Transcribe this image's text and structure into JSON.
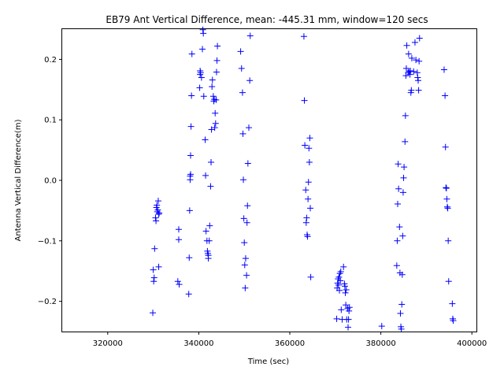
{
  "chart_data": {
    "type": "scatter",
    "title": "EB79 Ant Vertical Difference, mean: -445.31 mm, window=120 secs",
    "xlabel": "Time (sec)",
    "ylabel": "Antenna Vertical Difference(m)",
    "xlim": [
      310000,
      401000
    ],
    "ylim": [
      -0.25,
      0.25
    ],
    "x_ticks": [
      320000,
      340000,
      360000,
      380000,
      400000
    ],
    "y_ticks": [
      -0.2,
      -0.1,
      0.0,
      0.1,
      0.2
    ],
    "x_tick_labels": [
      "320000",
      "340000",
      "360000",
      "380000",
      "400000"
    ],
    "y_tick_labels": [
      "−0.2",
      "−0.1",
      "0.0",
      "0.1",
      "0.2"
    ],
    "marker": "+",
    "color": "#0000ff",
    "grid": false,
    "series": [
      {
        "points": [
          [
            329900,
            -0.219
          ],
          [
            330000,
            -0.148
          ],
          [
            330100,
            -0.167
          ],
          [
            330200,
            -0.161
          ],
          [
            330300,
            -0.113
          ],
          [
            330500,
            -0.062
          ],
          [
            330600,
            -0.067
          ],
          [
            330700,
            -0.045
          ],
          [
            330800,
            -0.041
          ],
          [
            330900,
            -0.052
          ],
          [
            331000,
            -0.049
          ],
          [
            331100,
            -0.034
          ],
          [
            331200,
            -0.056
          ],
          [
            331300,
            -0.054
          ],
          [
            331200,
            -0.143
          ],
          [
            335400,
            -0.167
          ],
          [
            335600,
            -0.081
          ],
          [
            335700,
            -0.172
          ],
          [
            335600,
            -0.098
          ],
          [
            337800,
            -0.188
          ],
          [
            337900,
            -0.128
          ],
          [
            338000,
            -0.05
          ],
          [
            338100,
            0.001
          ],
          [
            338100,
            0.007
          ],
          [
            338200,
            0.01
          ],
          [
            338200,
            0.041
          ],
          [
            338300,
            0.089
          ],
          [
            338400,
            0.14
          ],
          [
            338500,
            0.209
          ],
          [
            340200,
            0.153
          ],
          [
            340300,
            0.175
          ],
          [
            340300,
            0.181
          ],
          [
            340400,
            0.178
          ],
          [
            340600,
            0.17
          ],
          [
            340800,
            0.217
          ],
          [
            340900,
            0.249
          ],
          [
            341000,
            0.243
          ],
          [
            341100,
            0.139
          ],
          [
            341400,
            0.067
          ],
          [
            341500,
            0.008
          ],
          [
            341600,
            -0.084
          ],
          [
            341800,
            -0.1
          ],
          [
            341900,
            -0.117
          ],
          [
            342000,
            -0.121
          ],
          [
            342100,
            -0.129
          ],
          [
            342100,
            -0.124
          ],
          [
            342300,
            -0.1
          ],
          [
            342400,
            -0.075
          ],
          [
            342600,
            -0.01
          ],
          [
            342700,
            0.03
          ],
          [
            342800,
            0.084
          ],
          [
            342900,
            0.155
          ],
          [
            343000,
            0.166
          ],
          [
            343200,
            0.139
          ],
          [
            343300,
            0.131
          ],
          [
            343400,
            0.134
          ],
          [
            343500,
            0.087
          ],
          [
            343600,
            0.111
          ],
          [
            343700,
            0.094
          ],
          [
            343800,
            0.133
          ],
          [
            343900,
            0.179
          ],
          [
            344000,
            0.198
          ],
          [
            344100,
            0.222
          ],
          [
            349200,
            0.213
          ],
          [
            349400,
            0.185
          ],
          [
            349600,
            0.145
          ],
          [
            349700,
            0.077
          ],
          [
            349800,
            0.001
          ],
          [
            349900,
            -0.063
          ],
          [
            350000,
            -0.103
          ],
          [
            350100,
            -0.14
          ],
          [
            350200,
            -0.178
          ],
          [
            350300,
            -0.129
          ],
          [
            350500,
            -0.157
          ],
          [
            350600,
            -0.07
          ],
          [
            350700,
            -0.042
          ],
          [
            350800,
            0.028
          ],
          [
            351000,
            0.087
          ],
          [
            351200,
            0.165
          ],
          [
            351300,
            0.239
          ],
          [
            363100,
            0.238
          ],
          [
            363200,
            0.132
          ],
          [
            363300,
            0.058
          ],
          [
            363500,
            -0.016
          ],
          [
            363600,
            -0.07
          ],
          [
            363700,
            -0.062
          ],
          [
            363800,
            -0.09
          ],
          [
            363900,
            -0.093
          ],
          [
            364000,
            -0.031
          ],
          [
            364100,
            -0.003
          ],
          [
            364200,
            0.053
          ],
          [
            364300,
            0.03
          ],
          [
            364400,
            0.07
          ],
          [
            364500,
            -0.046
          ],
          [
            364600,
            -0.16
          ],
          [
            370300,
            -0.229
          ],
          [
            370400,
            -0.178
          ],
          [
            370500,
            -0.17
          ],
          [
            370600,
            -0.163
          ],
          [
            370700,
            -0.173
          ],
          [
            370800,
            -0.16
          ],
          [
            370900,
            -0.182
          ],
          [
            371000,
            -0.154
          ],
          [
            371100,
            -0.166
          ],
          [
            371200,
            -0.151
          ],
          [
            371300,
            -0.214
          ],
          [
            371500,
            -0.23
          ],
          [
            371800,
            -0.143
          ],
          [
            372000,
            -0.171
          ],
          [
            372100,
            -0.175
          ],
          [
            372200,
            -0.186
          ],
          [
            372300,
            -0.206
          ],
          [
            372400,
            -0.181
          ],
          [
            372500,
            -0.23
          ],
          [
            372700,
            -0.212
          ],
          [
            372800,
            -0.243
          ],
          [
            372900,
            -0.23
          ],
          [
            373000,
            -0.216
          ],
          [
            373100,
            -0.21
          ],
          [
            380200,
            -0.241
          ],
          [
            383500,
            -0.141
          ],
          [
            383600,
            -0.1
          ],
          [
            383700,
            -0.039
          ],
          [
            383800,
            0.027
          ],
          [
            383900,
            -0.014
          ],
          [
            384100,
            -0.077
          ],
          [
            384200,
            -0.153
          ],
          [
            384300,
            -0.22
          ],
          [
            384400,
            -0.242
          ],
          [
            384500,
            -0.246
          ],
          [
            384600,
            -0.205
          ],
          [
            384700,
            -0.156
          ],
          [
            384800,
            -0.092
          ],
          [
            384900,
            -0.02
          ],
          [
            385000,
            0.004
          ],
          [
            385100,
            0.022
          ],
          [
            385300,
            0.064
          ],
          [
            385400,
            0.107
          ],
          [
            385500,
            0.173
          ],
          [
            385600,
            0.185
          ],
          [
            385700,
            0.223
          ],
          [
            386000,
            0.178
          ],
          [
            386100,
            0.209
          ],
          [
            386200,
            0.18
          ],
          [
            386400,
            0.175
          ],
          [
            386500,
            0.181
          ],
          [
            386600,
            0.145
          ],
          [
            386700,
            0.149
          ],
          [
            386800,
            0.202
          ],
          [
            387200,
            0.18
          ],
          [
            387500,
            0.228
          ],
          [
            387700,
            0.199
          ],
          [
            388000,
            0.178
          ],
          [
            388100,
            0.17
          ],
          [
            388200,
            0.165
          ],
          [
            388300,
            0.149
          ],
          [
            388400,
            0.197
          ],
          [
            388500,
            0.235
          ],
          [
            393900,
            0.183
          ],
          [
            394100,
            0.14
          ],
          [
            394200,
            0.055
          ],
          [
            394300,
            -0.012
          ],
          [
            394400,
            -0.013
          ],
          [
            394500,
            -0.031
          ],
          [
            394600,
            -0.044
          ],
          [
            394700,
            -0.046
          ],
          [
            394800,
            -0.1
          ],
          [
            394900,
            -0.167
          ],
          [
            395700,
            -0.204
          ],
          [
            395800,
            -0.229
          ],
          [
            395900,
            -0.232
          ]
        ]
      }
    ]
  }
}
